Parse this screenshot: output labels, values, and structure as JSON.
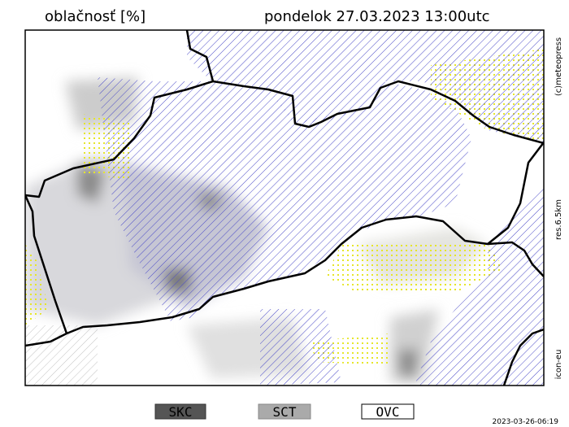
{
  "header": {
    "title": "oblačnosť [%]",
    "date": "pondelok 27.03.2023 13:00utc"
  },
  "side_labels": [
    "(c)meteopress",
    "res.6.5km",
    "icon-eu"
  ],
  "legend": [
    "SKC",
    "SCT",
    "OVC"
  ],
  "footer": {
    "timestamp": "2023-03-26-06:19"
  }
}
